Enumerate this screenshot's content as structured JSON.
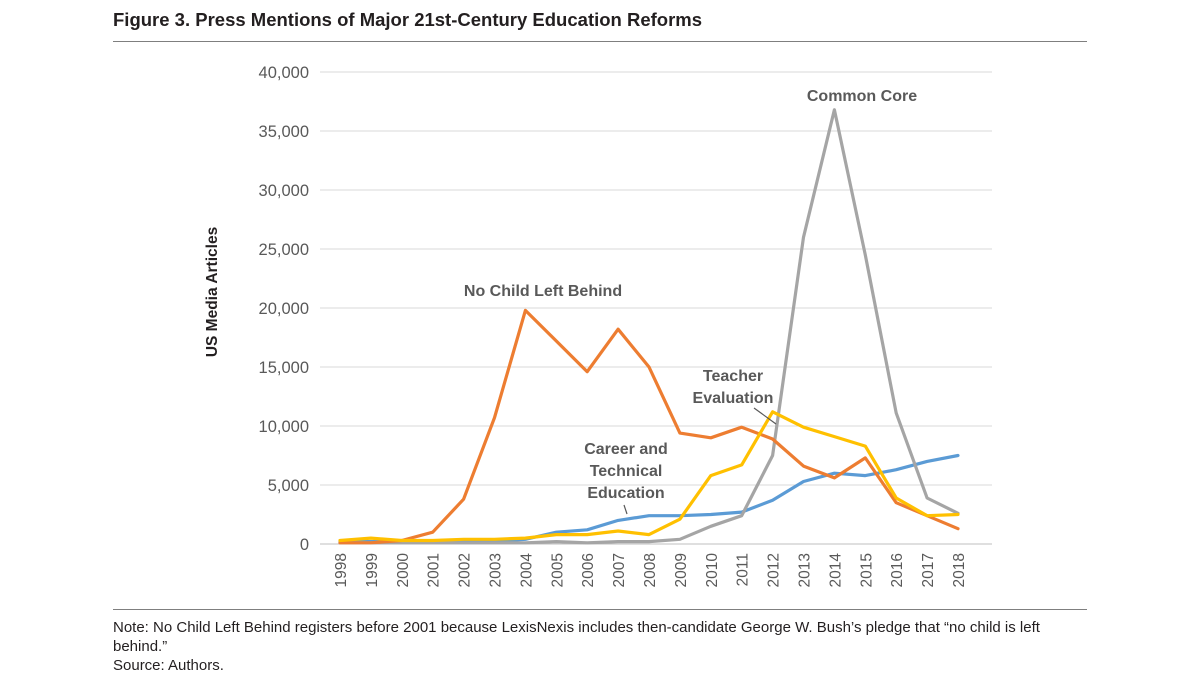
{
  "figure": {
    "title": "Figure 3. Press Mentions of Major 21st-Century Education Reforms",
    "note": "Note: No Child Left Behind registers before 2001 because LexisNexis includes then-candidate George W. Bush’s pledge that “no child is left behind.”",
    "source": "Source: Authors."
  },
  "chart_data": {
    "type": "line",
    "title": "",
    "xlabel": "",
    "ylabel": "US Media Articles",
    "ylim": [
      0,
      40000
    ],
    "yticks": [
      0,
      5000,
      10000,
      15000,
      20000,
      25000,
      30000,
      35000,
      40000
    ],
    "ytick_labels": [
      "0",
      "5,000",
      "10,000",
      "15,000",
      "20,000",
      "25,000",
      "30,000",
      "35,000",
      "40,000"
    ],
    "grid": true,
    "legend": "none (direct labels)",
    "x": [
      "1998",
      "1999",
      "2000",
      "2001",
      "2002",
      "2003",
      "2004",
      "2005",
      "2006",
      "2007",
      "2008",
      "2009",
      "2010",
      "2011",
      "2012",
      "2013",
      "2014",
      "2015",
      "2016",
      "2017",
      "2018"
    ],
    "series": [
      {
        "name": "Career and Technical Education",
        "label_lines": [
          "Career and",
          "Technical",
          "Education"
        ],
        "color": "#5b9bd5",
        "values": [
          200,
          200,
          200,
          200,
          200,
          200,
          400,
          1000,
          1200,
          2000,
          2400,
          2400,
          2500,
          2700,
          3700,
          5300,
          6000,
          5800,
          6300,
          7000,
          7500
        ]
      },
      {
        "name": "Common Core",
        "label_lines": [
          "Common Core"
        ],
        "color": "#a5a5a5",
        "values": [
          100,
          100,
          100,
          100,
          100,
          100,
          100,
          200,
          100,
          200,
          200,
          400,
          1500,
          2400,
          7500,
          26000,
          36800,
          24500,
          11100,
          3900,
          2600
        ]
      },
      {
        "name": "No Child Left Behind",
        "label_lines": [
          "No Child Left Behind"
        ],
        "color": "#ed7d31",
        "values": [
          100,
          100,
          300,
          1000,
          3800,
          10700,
          19800,
          17200,
          14600,
          18200,
          15000,
          9400,
          9000,
          9900,
          8900,
          6600,
          5600,
          7300,
          3500,
          2400,
          1300
        ]
      },
      {
        "name": "Teacher Evaluation",
        "label_lines": [
          "Teacher",
          "Evaluation"
        ],
        "color": "#ffc000",
        "values": [
          300,
          500,
          300,
          300,
          400,
          400,
          500,
          800,
          800,
          1100,
          800,
          2100,
          5800,
          6700,
          11200,
          9900,
          9100,
          8300,
          3900,
          2400,
          2500
        ]
      }
    ]
  }
}
